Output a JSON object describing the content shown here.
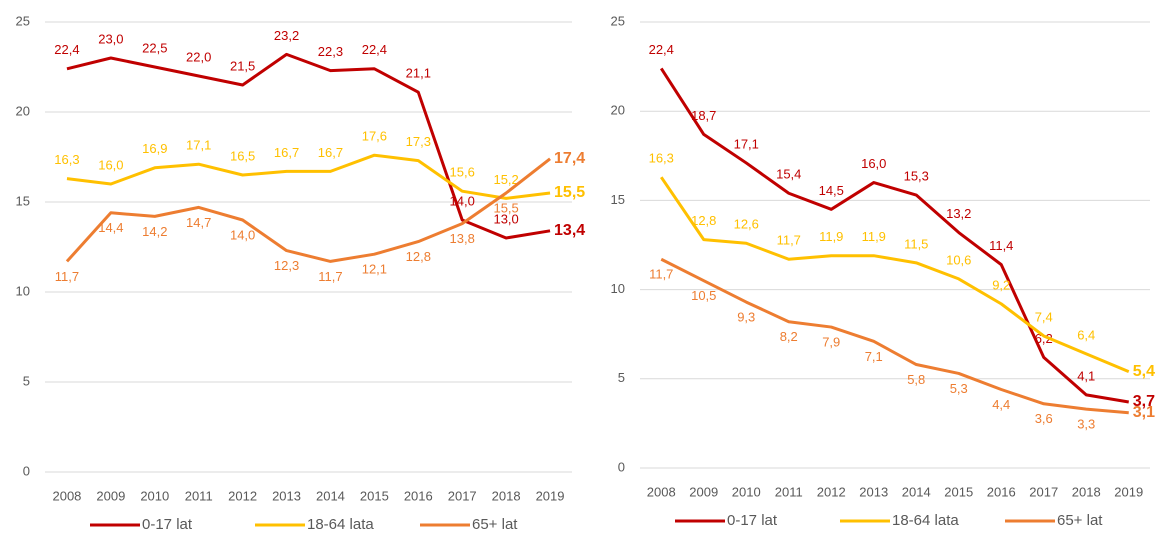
{
  "chart_data": [
    {
      "type": "line",
      "categories": [
        "2008",
        "2009",
        "2010",
        "2011",
        "2012",
        "2013",
        "2014",
        "2015",
        "2016",
        "2017",
        "2018",
        "2019"
      ],
      "ylim": [
        0,
        25
      ],
      "yticks": [
        0,
        5,
        10,
        15,
        20,
        25
      ],
      "grid": true,
      "series": [
        {
          "name": "0-17 lat",
          "color": "#c00000",
          "values": [
            22.4,
            23.0,
            22.5,
            22.0,
            21.5,
            23.2,
            22.3,
            22.4,
            21.1,
            14.0,
            13.0,
            13.4
          ],
          "value_labels": [
            "22,4",
            "23,0",
            "22,5",
            "22,0",
            "21,5",
            "23,2",
            "22,3",
            "22,4",
            "21,1",
            "14,0",
            "13,0",
            "13,4"
          ]
        },
        {
          "name": "18-64 lata",
          "color": "#ffc000",
          "values": [
            16.3,
            16.0,
            16.9,
            17.1,
            16.5,
            16.7,
            16.7,
            17.6,
            17.3,
            15.6,
            15.2,
            15.5
          ],
          "value_labels": [
            "16,3",
            "16,0",
            "16,9",
            "17,1",
            "16,5",
            "16,7",
            "16,7",
            "17,6",
            "17,3",
            "15,6",
            "15,2",
            "15,5"
          ]
        },
        {
          "name": "65+ lat",
          "color": "#ed7d31",
          "values": [
            11.7,
            14.4,
            14.2,
            14.7,
            14.0,
            12.3,
            11.7,
            12.1,
            12.8,
            13.8,
            15.5,
            17.4
          ],
          "value_labels": [
            "11,7",
            "14,4",
            "14,2",
            "14,7",
            "14,0",
            "12,3",
            "11,7",
            "12,1",
            "12,8",
            "13,8",
            "15,5",
            "17,4"
          ]
        }
      ]
    },
    {
      "type": "line",
      "categories": [
        "2008",
        "2009",
        "2010",
        "2011",
        "2012",
        "2013",
        "2014",
        "2015",
        "2016",
        "2017",
        "2018",
        "2019"
      ],
      "ylim": [
        0,
        25
      ],
      "yticks": [
        0,
        5,
        10,
        15,
        20,
        25
      ],
      "grid": true,
      "series": [
        {
          "name": "0-17 lat",
          "color": "#c00000",
          "values": [
            22.4,
            18.7,
            17.1,
            15.4,
            14.5,
            16.0,
            15.3,
            13.2,
            11.4,
            6.2,
            4.1,
            3.7
          ],
          "value_labels": [
            "22,4",
            "18,7",
            "17,1",
            "15,4",
            "14,5",
            "16,0",
            "15,3",
            "13,2",
            "11,4",
            "6,2",
            "4,1",
            "3,7"
          ]
        },
        {
          "name": "18-64 lata",
          "color": "#ffc000",
          "values": [
            16.3,
            12.8,
            12.6,
            11.7,
            11.9,
            11.9,
            11.5,
            10.6,
            9.2,
            7.4,
            6.4,
            5.4
          ],
          "value_labels": [
            "16,3",
            "12,8",
            "12,6",
            "11,7",
            "11,9",
            "11,9",
            "11,5",
            "10,6",
            "9,2",
            "7,4",
            "6,4",
            "5,4"
          ]
        },
        {
          "name": "65+ lat",
          "color": "#ed7d31",
          "values": [
            11.7,
            10.5,
            9.3,
            8.2,
            7.9,
            7.1,
            5.8,
            5.3,
            4.4,
            3.6,
            3.3,
            3.1
          ],
          "value_labels": [
            "11,7",
            "10,5",
            "9,3",
            "8,2",
            "7,9",
            "7,1",
            "5,8",
            "5,3",
            "4,4",
            "3,6",
            "3,3",
            "3,1"
          ]
        }
      ]
    }
  ]
}
